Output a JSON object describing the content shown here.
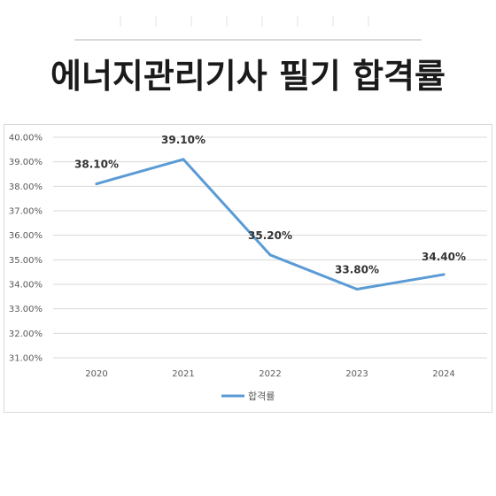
{
  "page_title": "에너지관리기사 필기 합격률",
  "chart_data": {
    "type": "line",
    "categories": [
      "2020",
      "2021",
      "2022",
      "2023",
      "2024"
    ],
    "series": [
      {
        "name": "합격률",
        "values": [
          38.1,
          39.1,
          35.2,
          33.8,
          34.4
        ],
        "color": "#5b9bd5"
      }
    ],
    "data_labels": [
      "38.10%",
      "39.10%",
      "35.20%",
      "33.80%",
      "34.40%"
    ],
    "y_ticks": [
      "31.00%",
      "32.00%",
      "33.00%",
      "34.00%",
      "35.00%",
      "36.00%",
      "37.00%",
      "38.00%",
      "39.00%",
      "40.00%"
    ],
    "ylim": [
      31,
      40
    ],
    "grid": true,
    "legend_position": "bottom"
  }
}
